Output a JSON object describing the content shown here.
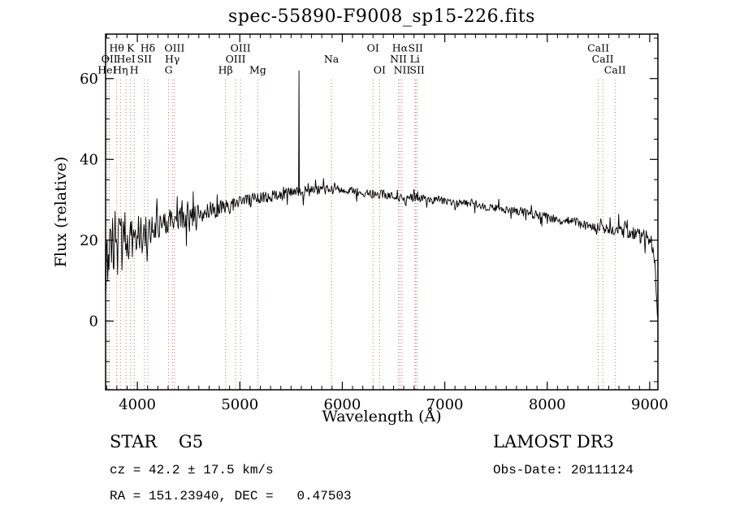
{
  "title": "spec-55890-F9008_sp15-226.fits",
  "footer": {
    "object_class": "STAR    G5",
    "cz": "cz = 42.2 ± 17.5 km/s",
    "ra_dec": "RA = 151.23940, DEC =   0.47503",
    "survey": "LAMOST DR3",
    "obs_date": "Obs-Date: 20111124"
  },
  "chart_data": {
    "type": "line",
    "title": "spec-55890-F9008_sp15-226.fits",
    "xlabel": "Wavelength (Å)",
    "ylabel": "Flux (relative)",
    "xlim": [
      3690,
      9080
    ],
    "ylim": [
      -17,
      71
    ],
    "x_ticks": [
      4000,
      5000,
      6000,
      7000,
      8000,
      9000
    ],
    "y_ticks": [
      0,
      20,
      40,
      60
    ],
    "x_minor_step": 100,
    "y_minor_step": 5,
    "grid": false,
    "legend": "none",
    "line_color": "#000000",
    "marker_line_color": "#c87272",
    "sky_emission_line": {
      "wavelength": 5577,
      "peak_flux": 62
    },
    "sample_step": 6,
    "noise_seed": 987654321,
    "continuum": [
      [
        3690,
        16
      ],
      [
        3740,
        18
      ],
      [
        3800,
        19
      ],
      [
        3870,
        20
      ],
      [
        3950,
        21
      ],
      [
        4050,
        22
      ],
      [
        4150,
        23
      ],
      [
        4250,
        24
      ],
      [
        4350,
        25
      ],
      [
        4450,
        25.5
      ],
      [
        4550,
        26
      ],
      [
        4650,
        27
      ],
      [
        4750,
        27.5
      ],
      [
        4850,
        28
      ],
      [
        4950,
        29
      ],
      [
        5050,
        29.5
      ],
      [
        5150,
        30
      ],
      [
        5250,
        30.5
      ],
      [
        5350,
        31
      ],
      [
        5450,
        31.5
      ],
      [
        5550,
        32
      ],
      [
        5650,
        32
      ],
      [
        5750,
        32.5
      ],
      [
        5850,
        32.5
      ],
      [
        5950,
        32.5
      ],
      [
        6050,
        32
      ],
      [
        6150,
        32
      ],
      [
        6250,
        31.5
      ],
      [
        6350,
        31.5
      ],
      [
        6450,
        31
      ],
      [
        6550,
        30.5
      ],
      [
        6650,
        30.5
      ],
      [
        6750,
        30.5
      ],
      [
        6850,
        30
      ],
      [
        6950,
        30
      ],
      [
        7050,
        29.5
      ],
      [
        7150,
        29
      ],
      [
        7250,
        29
      ],
      [
        7350,
        28.5
      ],
      [
        7450,
        28
      ],
      [
        7550,
        28
      ],
      [
        7650,
        27.5
      ],
      [
        7750,
        27
      ],
      [
        7850,
        26.5
      ],
      [
        7950,
        26
      ],
      [
        8050,
        25.5
      ],
      [
        8150,
        25
      ],
      [
        8250,
        24.5
      ],
      [
        8350,
        24
      ],
      [
        8450,
        23.5
      ],
      [
        8550,
        23
      ],
      [
        8650,
        22.5
      ],
      [
        8750,
        22
      ],
      [
        8850,
        21.5
      ],
      [
        8950,
        21
      ],
      [
        9020,
        20
      ],
      [
        9050,
        14
      ],
      [
        9070,
        3
      ],
      [
        9080,
        1
      ]
    ],
    "noise_amplitude": [
      [
        3690,
        20
      ],
      [
        3760,
        21
      ],
      [
        3830,
        17
      ],
      [
        3900,
        13
      ],
      [
        3980,
        10
      ],
      [
        4080,
        8
      ],
      [
        4200,
        6.5
      ],
      [
        4400,
        5.5
      ],
      [
        4700,
        4.5
      ],
      [
        5000,
        3.5
      ],
      [
        5400,
        3
      ],
      [
        5800,
        2.5
      ],
      [
        6300,
        2.2
      ],
      [
        7000,
        2
      ],
      [
        7600,
        2
      ],
      [
        8100,
        2.3
      ],
      [
        8500,
        2.8
      ],
      [
        8800,
        3.4
      ],
      [
        9080,
        4.5
      ]
    ],
    "spectral_lines": [
      {
        "label": "Hθ",
        "wavelength": 3799,
        "row": 1
      },
      {
        "label": "K",
        "wavelength": 3934,
        "row": 1
      },
      {
        "label": "Hδ",
        "wavelength": 4102,
        "row": 1
      },
      {
        "label": "OIII",
        "wavelength": 4363,
        "row": 1
      },
      {
        "label": "OIII",
        "wavelength": 5007,
        "row": 1
      },
      {
        "label": "OI",
        "wavelength": 6300,
        "row": 1
      },
      {
        "label": "Hα",
        "wavelength": 6563,
        "row": 1
      },
      {
        "label": "SII",
        "wavelength": 6716,
        "row": 1
      },
      {
        "label": "CaII",
        "wavelength": 8498,
        "row": 1
      },
      {
        "label": "OII",
        "wavelength": 3727,
        "row": 2
      },
      {
        "label": "HeI",
        "wavelength": 3889,
        "row": 2
      },
      {
        "label": "SII",
        "wavelength": 4069,
        "row": 2
      },
      {
        "label": "Hγ",
        "wavelength": 4341,
        "row": 2
      },
      {
        "label": "OIII",
        "wavelength": 4959,
        "row": 2
      },
      {
        "label": "Na",
        "wavelength": 5894,
        "row": 2
      },
      {
        "label": "NII",
        "wavelength": 6548,
        "row": 2
      },
      {
        "label": "Li",
        "wavelength": 6708,
        "row": 2
      },
      {
        "label": "CaII",
        "wavelength": 8542,
        "row": 2
      },
      {
        "label": "HeI",
        "wavelength": 3705,
        "row": 3
      },
      {
        "label": "Hη",
        "wavelength": 3835,
        "row": 3
      },
      {
        "label": "H",
        "wavelength": 3969,
        "row": 3
      },
      {
        "label": "G",
        "wavelength": 4305,
        "row": 3
      },
      {
        "label": "Hβ",
        "wavelength": 4861,
        "row": 3
      },
      {
        "label": "Mg",
        "wavelength": 5175,
        "row": 3
      },
      {
        "label": "OI",
        "wavelength": 6364,
        "row": 3
      },
      {
        "label": "NII",
        "wavelength": 6583,
        "row": 3
      },
      {
        "label": "SII",
        "wavelength": 6731,
        "row": 3
      },
      {
        "label": "CaII",
        "wavelength": 8662,
        "row": 3
      }
    ]
  }
}
